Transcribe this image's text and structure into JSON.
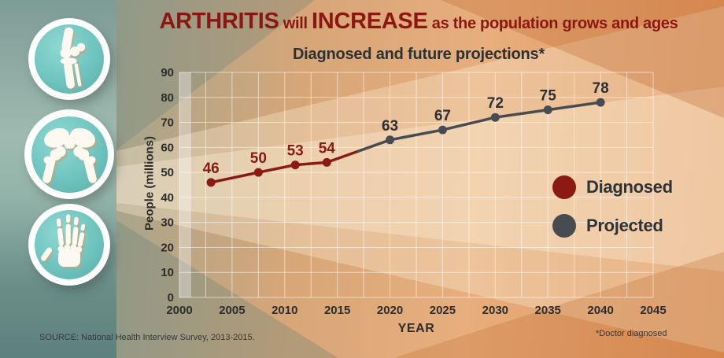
{
  "header": {
    "title": {
      "emph1": "ARTHRITIS",
      "mid": " will ",
      "emph2": "INCREASE",
      "rest": " as the population grows and ages"
    },
    "subtitle": "Diagnosed and future projections*"
  },
  "chart_data": {
    "type": "line",
    "title": "Diagnosed and future projections*",
    "xlabel": "YEAR",
    "ylabel": "People (millions)",
    "xlim": [
      2000,
      2045
    ],
    "ylim": [
      0,
      90
    ],
    "xticks": [
      2000,
      2005,
      2010,
      2015,
      2020,
      2025,
      2030,
      2035,
      2040,
      2045
    ],
    "yticks": [
      0,
      10,
      20,
      30,
      40,
      50,
      60,
      70,
      80,
      90
    ],
    "grid": {
      "x_step": 2.5,
      "y_step": 10,
      "color": "rgba(255,255,255,0.55)"
    },
    "series": [
      {
        "name": "Diagnosed",
        "color": "#8B1A12",
        "label_color": "#8B1A12",
        "x": [
          2003,
          2007.5,
          2011,
          2014
        ],
        "values": [
          46,
          50,
          53,
          54
        ]
      },
      {
        "name": "Projected",
        "color": "#464C51",
        "label_color": "#2B3034",
        "x": [
          2020,
          2025,
          2030,
          2035,
          2040
        ],
        "values": [
          63,
          67,
          72,
          75,
          78
        ]
      }
    ],
    "transition_point": {
      "x": 2017,
      "y": 58.5
    },
    "legend": {
      "position": "right-middle",
      "items": [
        {
          "label": "Diagnosed",
          "color": "#8B1A12"
        },
        {
          "label": "Projected",
          "color": "#464C51"
        }
      ]
    }
  },
  "icons": [
    {
      "name": "knee-joint-icon"
    },
    {
      "name": "hip-joint-icon"
    },
    {
      "name": "hand-bones-icon"
    }
  ],
  "footer": {
    "source": "SOURCE: National Health Interview Survey, 2013-2015.",
    "footnote": "*Doctor diagnosed"
  }
}
